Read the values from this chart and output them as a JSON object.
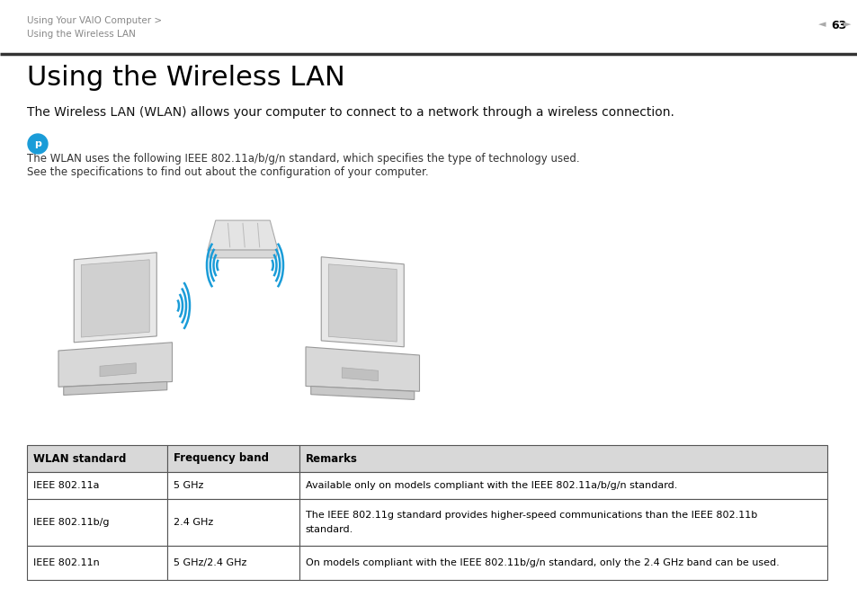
{
  "bg_color": "#ffffff",
  "breadcrumb_line1": "Using Your VAIO Computer >",
  "breadcrumb_line2": "Using the Wireless LAN",
  "breadcrumb_color": "#888888",
  "page_num": "63",
  "title": "Using the Wireless LAN",
  "subtitle": "The Wireless LAN (WLAN) allows your computer to connect to a network through a wireless connection.",
  "note_icon_color": "#1a9cd8",
  "note_line1": "The WLAN uses the following IEEE 802.11a/b/g/n standard, which specifies the type of technology used.",
  "note_line2": "See the specifications to find out about the configuration of your computer.",
  "table_header": [
    "WLAN standard",
    "Frequency band",
    "Remarks"
  ],
  "table_rows": [
    [
      "IEEE 802.11a",
      "5 GHz",
      "Available only on models compliant with the IEEE 802.11a/b/g/n standard."
    ],
    [
      "IEEE 802.11b/g",
      "2.4 GHz",
      "The IEEE 802.11g standard provides higher-speed communications than the IEEE 802.11b\nstandard."
    ],
    [
      "IEEE 802.11n",
      "5 GHz/2.4 GHz",
      "On models compliant with the IEEE 802.11b/g/n standard, only the 2.4 GHz band can be used."
    ]
  ],
  "wave_color": "#1a9cd8",
  "laptop_face_color": "#e8e8e8",
  "laptop_side_color": "#d0d0d0",
  "laptop_base_color": "#d8d8d8",
  "router_color": "#e0e0e0"
}
